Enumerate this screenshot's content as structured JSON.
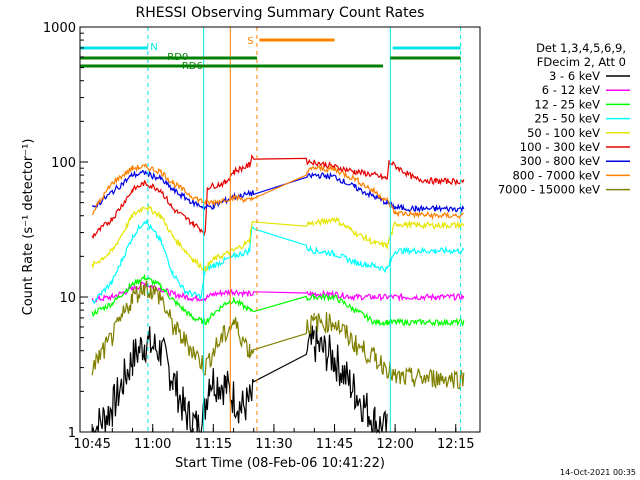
{
  "chart_data": {
    "type": "line",
    "title": "RHESSI Observing Summary Count Rates",
    "xlabel": "Start Time (08-Feb-06 10:41:22)",
    "ylabel": "Count Rate (s⁻¹ detector⁻¹)",
    "yscale": "log",
    "ylim": [
      1,
      1000
    ],
    "xlim_minutes": [
      10.7,
      12.35
    ],
    "x_ticks": [
      "10:45",
      "11:00",
      "11:15",
      "11:30",
      "11:45",
      "12:00",
      "12:15"
    ],
    "y_ticks": [
      "1",
      "10",
      "100",
      "1000"
    ],
    "legend_header": [
      "Det 1,3,4,5,6,9,",
      "FDecim 2, Att 0"
    ],
    "legend_placement": "right",
    "timestamp": "14-Oct-2021 00:35",
    "flags": [
      {
        "label": "N",
        "color": "#00e5e5"
      },
      {
        "label": "RD0",
        "color": "#008000"
      },
      {
        "label": "RD6",
        "color": "#008000"
      },
      {
        "label": "S",
        "color": "#ff8000"
      }
    ],
    "series": [
      {
        "name": "3 - 6 keV",
        "color": "#000000",
        "points": [
          [
            "10:45",
            1.0
          ],
          [
            "10:50",
            1.5
          ],
          [
            "10:55",
            3.5
          ],
          [
            "10:58",
            4.6
          ],
          [
            "11:02",
            4.0
          ],
          [
            "11:05",
            2.5
          ],
          [
            "11:08",
            1.4
          ],
          [
            "11:12",
            1.0
          ],
          [
            "11:14",
            2.5
          ],
          [
            "11:18",
            2.2
          ],
          [
            "11:22",
            1.5
          ],
          [
            "11:40",
            4.5
          ],
          [
            "11:45",
            3.5
          ],
          [
            "11:50",
            2.0
          ],
          [
            "11:55",
            1.2
          ],
          [
            "11:58",
            1.0
          ]
        ]
      },
      {
        "name": "6 - 12 keV",
        "color": "#ff00ff",
        "points": [
          [
            "10:45",
            9.5
          ],
          [
            "10:50",
            10
          ],
          [
            "10:55",
            11.5
          ],
          [
            "10:58",
            12.5
          ],
          [
            "11:02",
            11.5
          ],
          [
            "11:05",
            10.5
          ],
          [
            "11:10",
            9.8
          ],
          [
            "11:13",
            9.8
          ],
          [
            "11:15",
            10.5
          ],
          [
            "11:20",
            11
          ],
          [
            "11:24",
            10.5
          ],
          [
            "11:40",
            10.5
          ],
          [
            "11:45",
            10.5
          ],
          [
            "11:50",
            10
          ],
          [
            "11:55",
            10
          ],
          [
            "12:00",
            10
          ],
          [
            "12:05",
            10
          ],
          [
            "12:10",
            10
          ],
          [
            "12:17",
            10
          ]
        ]
      },
      {
        "name": "12 - 25 keV",
        "color": "#00ff00",
        "points": [
          [
            "10:45",
            7.5
          ],
          [
            "10:50",
            9
          ],
          [
            "10:55",
            12.5
          ],
          [
            "10:58",
            14
          ],
          [
            "11:02",
            12
          ],
          [
            "11:05",
            9.5
          ],
          [
            "11:10",
            7
          ],
          [
            "11:13",
            6.5
          ],
          [
            "11:15",
            7.5
          ],
          [
            "11:18",
            9
          ],
          [
            "11:20",
            9.5
          ],
          [
            "11:24",
            8
          ],
          [
            "11:40",
            10
          ],
          [
            "11:45",
            10
          ],
          [
            "11:50",
            8
          ],
          [
            "11:55",
            6.5
          ],
          [
            "11:58",
            6.5
          ],
          [
            "12:00",
            6.5
          ],
          [
            "12:05",
            6.5
          ],
          [
            "12:10",
            6.5
          ],
          [
            "12:17",
            6.5
          ]
        ]
      },
      {
        "name": "25 - 50 keV",
        "color": "#00ffff",
        "points": [
          [
            "10:45",
            9
          ],
          [
            "10:50",
            13
          ],
          [
            "10:55",
            28
          ],
          [
            "10:58",
            37
          ],
          [
            "11:02",
            26
          ],
          [
            "11:05",
            15
          ],
          [
            "11:08",
            11
          ],
          [
            "11:12",
            10
          ],
          [
            "11:13",
            16
          ],
          [
            "11:15",
            17
          ],
          [
            "11:20",
            20
          ],
          [
            "11:24",
            22
          ],
          [
            "11:24.5",
            33
          ],
          [
            "11:40",
            22
          ],
          [
            "11:45",
            21
          ],
          [
            "11:50",
            18
          ],
          [
            "11:55",
            17
          ],
          [
            "11:58",
            16
          ],
          [
            "12:00",
            22
          ],
          [
            "12:05",
            22
          ],
          [
            "12:10",
            22
          ],
          [
            "12:17",
            22
          ]
        ]
      },
      {
        "name": "50 - 100 keV",
        "color": "#e5e500",
        "points": [
          [
            "10:45",
            17
          ],
          [
            "10:50",
            22
          ],
          [
            "10:55",
            40
          ],
          [
            "10:58",
            47
          ],
          [
            "11:02",
            40
          ],
          [
            "11:05",
            28
          ],
          [
            "11:10",
            19
          ],
          [
            "11:13",
            16
          ],
          [
            "11:15",
            19
          ],
          [
            "11:20",
            22
          ],
          [
            "11:24",
            26
          ],
          [
            "11:24.5",
            35
          ],
          [
            "11:40",
            35
          ],
          [
            "11:45",
            38
          ],
          [
            "11:50",
            30
          ],
          [
            "11:55",
            25
          ],
          [
            "11:58",
            24
          ],
          [
            "12:00",
            35
          ],
          [
            "12:05",
            34
          ],
          [
            "12:10",
            34
          ],
          [
            "12:17",
            34
          ]
        ]
      },
      {
        "name": "100 - 300 keV",
        "color": "#e50000",
        "points": [
          [
            "10:45",
            28
          ],
          [
            "10:50",
            38
          ],
          [
            "10:55",
            62
          ],
          [
            "10:58",
            70
          ],
          [
            "11:02",
            62
          ],
          [
            "11:05",
            45
          ],
          [
            "11:10",
            35
          ],
          [
            "11:13",
            30
          ],
          [
            "11:13.5",
            65
          ],
          [
            "11:18",
            70
          ],
          [
            "11:20",
            85
          ],
          [
            "11:24",
            95
          ],
          [
            "11:24.5",
            110
          ],
          [
            "11:40",
            100
          ],
          [
            "11:45",
            92
          ],
          [
            "11:50",
            85
          ],
          [
            "11:55",
            80
          ],
          [
            "11:58",
            75
          ],
          [
            "11:58.5",
            100
          ],
          [
            "12:05",
            75
          ],
          [
            "12:10",
            72
          ],
          [
            "12:17",
            72
          ]
        ]
      },
      {
        "name": "300 - 800 keV",
        "color": "#0000e5",
        "points": [
          [
            "10:45",
            45
          ],
          [
            "10:50",
            60
          ],
          [
            "10:55",
            80
          ],
          [
            "10:58",
            83
          ],
          [
            "11:02",
            75
          ],
          [
            "11:05",
            62
          ],
          [
            "11:10",
            50
          ],
          [
            "11:13",
            46
          ],
          [
            "11:15",
            47
          ],
          [
            "11:20",
            55
          ],
          [
            "11:24",
            58
          ],
          [
            "11:40",
            80
          ],
          [
            "11:45",
            78
          ],
          [
            "11:50",
            65
          ],
          [
            "11:55",
            55
          ],
          [
            "11:58",
            50
          ],
          [
            "12:00",
            46
          ],
          [
            "12:05",
            45
          ],
          [
            "12:10",
            45
          ],
          [
            "12:17",
            45
          ]
        ]
      },
      {
        "name": "800 - 7000 keV",
        "color": "#ff8000",
        "points": [
          [
            "10:45",
            42
          ],
          [
            "10:50",
            70
          ],
          [
            "10:55",
            90
          ],
          [
            "10:58",
            92
          ],
          [
            "11:02",
            85
          ],
          [
            "11:05",
            70
          ],
          [
            "11:10",
            55
          ],
          [
            "11:13",
            50
          ],
          [
            "11:15",
            50
          ],
          [
            "11:20",
            55
          ],
          [
            "11:24",
            52
          ],
          [
            "11:40",
            90
          ],
          [
            "11:45",
            88
          ],
          [
            "11:50",
            75
          ],
          [
            "11:55",
            60
          ],
          [
            "11:58",
            52
          ],
          [
            "12:00",
            42
          ],
          [
            "12:05",
            41
          ],
          [
            "12:10",
            40
          ],
          [
            "12:17",
            40
          ]
        ]
      },
      {
        "name": "7000 - 15000 keV",
        "color": "#808000",
        "points": [
          [
            "10:45",
            3
          ],
          [
            "10:50",
            5
          ],
          [
            "10:55",
            10
          ],
          [
            "10:58",
            12
          ],
          [
            "11:02",
            10
          ],
          [
            "11:05",
            6
          ],
          [
            "11:10",
            4
          ],
          [
            "11:13",
            3
          ],
          [
            "11:15",
            4
          ],
          [
            "11:20",
            6.5
          ],
          [
            "11:24",
            4
          ],
          [
            "11:40",
            6.5
          ],
          [
            "11:45",
            6.5
          ],
          [
            "11:50",
            4.5
          ],
          [
            "11:55",
            3.5
          ],
          [
            "11:58",
            3
          ],
          [
            "12:00",
            2.5
          ],
          [
            "12:05",
            2.5
          ],
          [
            "12:10",
            2.5
          ],
          [
            "12:17",
            2.5
          ]
        ]
      }
    ]
  }
}
